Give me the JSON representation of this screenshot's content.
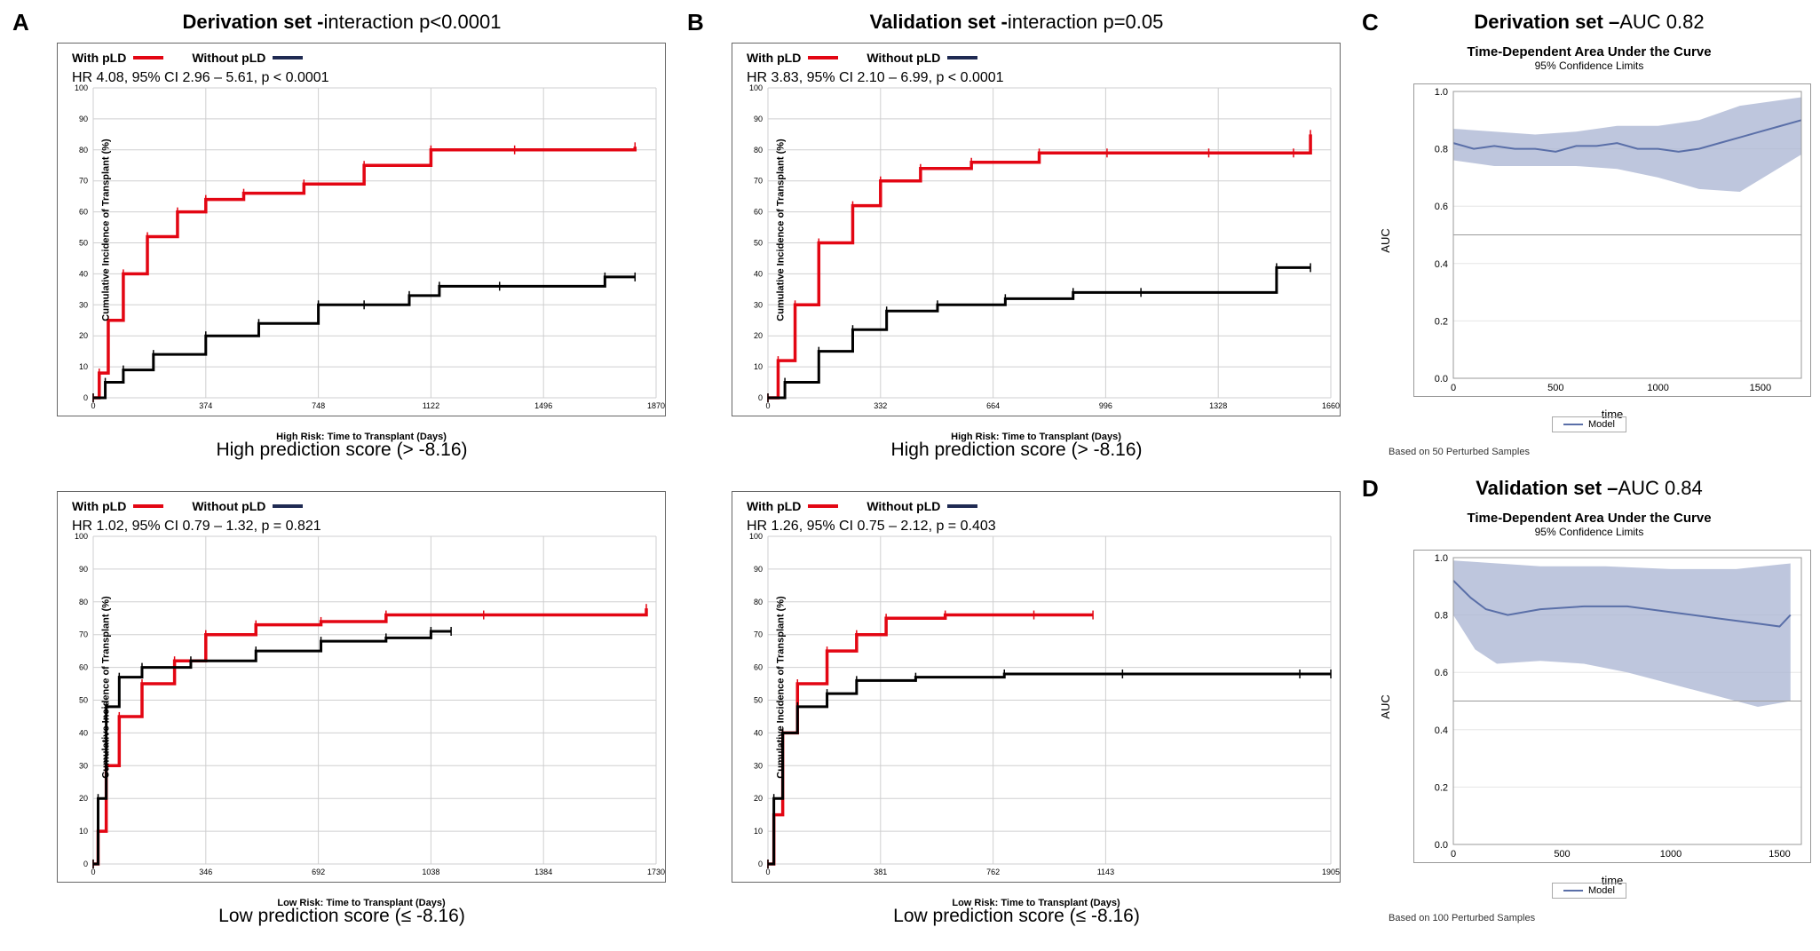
{
  "colors": {
    "with_pLD": "#e30613",
    "without_pLD": "#000000",
    "legend_without": "#1f2a52",
    "auc_line": "#5a6fa8",
    "auc_fill": "#a8b3d1",
    "grid": "#cfcfd0",
    "axis": "#333333",
    "background": "#ffffff"
  },
  "panelA": {
    "letter": "A",
    "title_bold": "Derivation set - ",
    "title_normal": "interaction p<0.0001",
    "top": {
      "legend_with": "With pLD",
      "legend_without": "Without pLD",
      "hr_text": "HR 4.08, 95% CI 2.96 – 5.61, p < 0.0001",
      "ylabel": "Cumulative Incidence of Transplant (%)",
      "xlabel": "High Risk: Time to Transplant (Days)",
      "xlim": [
        0,
        1870
      ],
      "xticks": [
        0,
        374,
        748,
        1122,
        1496,
        1870
      ],
      "ylim": [
        0,
        100
      ],
      "yticks": [
        0,
        10,
        20,
        30,
        40,
        50,
        60,
        70,
        80,
        90,
        100
      ],
      "subcaption": "High prediction score (> -8.16)",
      "with_pLD": [
        [
          0,
          0
        ],
        [
          20,
          8
        ],
        [
          50,
          25
        ],
        [
          100,
          40
        ],
        [
          180,
          52
        ],
        [
          280,
          60
        ],
        [
          374,
          64
        ],
        [
          500,
          66
        ],
        [
          700,
          69
        ],
        [
          900,
          75
        ],
        [
          1122,
          80
        ],
        [
          1400,
          80
        ],
        [
          1800,
          81
        ]
      ],
      "without_pLD": [
        [
          0,
          0
        ],
        [
          40,
          5
        ],
        [
          100,
          9
        ],
        [
          200,
          14
        ],
        [
          374,
          20
        ],
        [
          550,
          24
        ],
        [
          748,
          30
        ],
        [
          900,
          30
        ],
        [
          1050,
          33
        ],
        [
          1150,
          36
        ],
        [
          1350,
          36
        ],
        [
          1700,
          39
        ],
        [
          1800,
          39
        ]
      ]
    },
    "bottom": {
      "legend_with": "With pLD",
      "legend_without": "Without pLD",
      "hr_text": "HR 1.02, 95% CI 0.79 – 1.32, p = 0.821",
      "ylabel": "Cumulative Incidence of Transplant (%)",
      "xlabel": "Low Risk: Time to Transplant (Days)",
      "xlim": [
        0,
        1730
      ],
      "xticks": [
        0,
        346,
        692,
        1038,
        1384,
        1730
      ],
      "ylim": [
        0,
        100
      ],
      "yticks": [
        0,
        10,
        20,
        30,
        40,
        50,
        60,
        70,
        80,
        90,
        100
      ],
      "subcaption": "Low prediction score (≤ -8.16)",
      "with_pLD": [
        [
          0,
          0
        ],
        [
          15,
          10
        ],
        [
          40,
          30
        ],
        [
          80,
          45
        ],
        [
          150,
          55
        ],
        [
          250,
          62
        ],
        [
          346,
          70
        ],
        [
          500,
          73
        ],
        [
          700,
          74
        ],
        [
          900,
          76
        ],
        [
          1200,
          76
        ],
        [
          1700,
          78
        ]
      ],
      "without_pLD": [
        [
          0,
          0
        ],
        [
          15,
          20
        ],
        [
          40,
          48
        ],
        [
          80,
          57
        ],
        [
          150,
          60
        ],
        [
          300,
          62
        ],
        [
          500,
          65
        ],
        [
          700,
          68
        ],
        [
          900,
          69
        ],
        [
          1038,
          71
        ],
        [
          1100,
          71
        ]
      ]
    }
  },
  "panelB": {
    "letter": "B",
    "title_bold": "Validation set - ",
    "title_normal": "interaction p=0.05",
    "top": {
      "legend_with": "With pLD",
      "legend_without": "Without pLD",
      "hr_text": "HR 3.83, 95% CI 2.10 – 6.99, p < 0.0001",
      "ylabel": "Cumulative Incidence of Transplant (%)",
      "xlabel": "High Risk: Time to Transplant (Days)",
      "xlim": [
        0,
        1660
      ],
      "xticks": [
        0,
        332,
        664,
        996,
        1328,
        1660
      ],
      "ylim": [
        0,
        100
      ],
      "yticks": [
        0,
        10,
        20,
        30,
        40,
        50,
        60,
        70,
        80,
        90,
        100
      ],
      "subcaption": "High prediction score (> -8.16)",
      "with_pLD": [
        [
          0,
          0
        ],
        [
          30,
          12
        ],
        [
          80,
          30
        ],
        [
          150,
          50
        ],
        [
          250,
          62
        ],
        [
          332,
          70
        ],
        [
          450,
          74
        ],
        [
          600,
          76
        ],
        [
          800,
          79
        ],
        [
          1000,
          79
        ],
        [
          1300,
          79
        ],
        [
          1550,
          79
        ],
        [
          1600,
          85
        ]
      ],
      "without_pLD": [
        [
          0,
          0
        ],
        [
          50,
          5
        ],
        [
          150,
          15
        ],
        [
          250,
          22
        ],
        [
          350,
          28
        ],
        [
          500,
          30
        ],
        [
          700,
          32
        ],
        [
          900,
          34
        ],
        [
          1100,
          34
        ],
        [
          1500,
          42
        ],
        [
          1600,
          42
        ]
      ]
    },
    "bottom": {
      "legend_with": "With pLD",
      "legend_without": "Without pLD",
      "hr_text": "HR 1.26, 95% CI 0.75 – 2.12, p = 0.403",
      "ylabel": "Cumulative Incidence of Transplant (%)",
      "xlabel": "Low Risk: Time to Transplant (Days)",
      "xlim": [
        0,
        1905
      ],
      "xticks": [
        0,
        381,
        762,
        1143,
        1905
      ],
      "ylim": [
        0,
        100
      ],
      "yticks": [
        0,
        10,
        20,
        30,
        40,
        50,
        60,
        70,
        80,
        90,
        100
      ],
      "subcaption": "Low prediction score (≤ -8.16)",
      "with_pLD": [
        [
          0,
          0
        ],
        [
          20,
          15
        ],
        [
          50,
          40
        ],
        [
          100,
          55
        ],
        [
          200,
          65
        ],
        [
          300,
          70
        ],
        [
          400,
          75
        ],
        [
          600,
          76
        ],
        [
          900,
          76
        ],
        [
          1100,
          76
        ]
      ],
      "without_pLD": [
        [
          0,
          0
        ],
        [
          20,
          20
        ],
        [
          50,
          40
        ],
        [
          100,
          48
        ],
        [
          200,
          52
        ],
        [
          300,
          56
        ],
        [
          500,
          57
        ],
        [
          800,
          58
        ],
        [
          1200,
          58
        ],
        [
          1800,
          58
        ],
        [
          1905,
          58
        ]
      ]
    }
  },
  "panelC": {
    "letter": "C",
    "title": "Derivation set – ",
    "title_val": "AUC 0.82",
    "chart_title": "Time-Dependent Area Under the Curve",
    "chart_sub": "95% Confidence Limits",
    "ylabel": "AUC",
    "xlabel": "time",
    "ylim": [
      0,
      1.0
    ],
    "yticks": [
      0.0,
      0.2,
      0.4,
      0.6,
      0.8,
      1.0
    ],
    "xlim": [
      0,
      1700
    ],
    "xticks": [
      0,
      500,
      1000,
      1500
    ],
    "ref": 0.5,
    "legend_label": "Model",
    "footnote": "Based on 50 Perturbed Samples",
    "line": [
      [
        0,
        0.82
      ],
      [
        100,
        0.8
      ],
      [
        200,
        0.81
      ],
      [
        300,
        0.8
      ],
      [
        400,
        0.8
      ],
      [
        500,
        0.79
      ],
      [
        600,
        0.81
      ],
      [
        700,
        0.81
      ],
      [
        800,
        0.82
      ],
      [
        900,
        0.8
      ],
      [
        1000,
        0.8
      ],
      [
        1100,
        0.79
      ],
      [
        1200,
        0.8
      ],
      [
        1300,
        0.82
      ],
      [
        1400,
        0.84
      ],
      [
        1500,
        0.86
      ],
      [
        1600,
        0.88
      ],
      [
        1700,
        0.9
      ]
    ],
    "upper": [
      [
        0,
        0.87
      ],
      [
        200,
        0.86
      ],
      [
        400,
        0.85
      ],
      [
        600,
        0.86
      ],
      [
        800,
        0.88
      ],
      [
        1000,
        0.88
      ],
      [
        1200,
        0.9
      ],
      [
        1400,
        0.95
      ],
      [
        1700,
        0.98
      ]
    ],
    "lower": [
      [
        0,
        0.76
      ],
      [
        200,
        0.74
      ],
      [
        400,
        0.74
      ],
      [
        600,
        0.74
      ],
      [
        800,
        0.73
      ],
      [
        1000,
        0.7
      ],
      [
        1200,
        0.66
      ],
      [
        1400,
        0.65
      ],
      [
        1700,
        0.78
      ]
    ]
  },
  "panelD": {
    "letter": "D",
    "title": "Validation set – ",
    "title_val": "AUC 0.84",
    "chart_title": "Time-Dependent Area Under the Curve",
    "chart_sub": "95% Confidence Limits",
    "ylabel": "AUC",
    "xlabel": "time",
    "ylim": [
      0,
      1.0
    ],
    "yticks": [
      0.0,
      0.2,
      0.4,
      0.6,
      0.8,
      1.0
    ],
    "xlim": [
      0,
      1600
    ],
    "xticks": [
      0,
      500,
      1000,
      1500
    ],
    "ref": 0.5,
    "legend_label": "Model",
    "footnote": "Based on 100 Perturbed Samples",
    "line": [
      [
        0,
        0.92
      ],
      [
        80,
        0.86
      ],
      [
        150,
        0.82
      ],
      [
        250,
        0.8
      ],
      [
        400,
        0.82
      ],
      [
        600,
        0.83
      ],
      [
        800,
        0.83
      ],
      [
        1000,
        0.81
      ],
      [
        1200,
        0.79
      ],
      [
        1400,
        0.77
      ],
      [
        1500,
        0.76
      ],
      [
        1550,
        0.8
      ]
    ],
    "upper": [
      [
        0,
        0.99
      ],
      [
        200,
        0.98
      ],
      [
        400,
        0.97
      ],
      [
        700,
        0.97
      ],
      [
        1000,
        0.96
      ],
      [
        1300,
        0.96
      ],
      [
        1550,
        0.98
      ]
    ],
    "lower": [
      [
        0,
        0.8
      ],
      [
        100,
        0.68
      ],
      [
        200,
        0.63
      ],
      [
        400,
        0.64
      ],
      [
        600,
        0.63
      ],
      [
        800,
        0.6
      ],
      [
        1000,
        0.56
      ],
      [
        1200,
        0.52
      ],
      [
        1400,
        0.48
      ],
      [
        1550,
        0.5
      ]
    ]
  }
}
